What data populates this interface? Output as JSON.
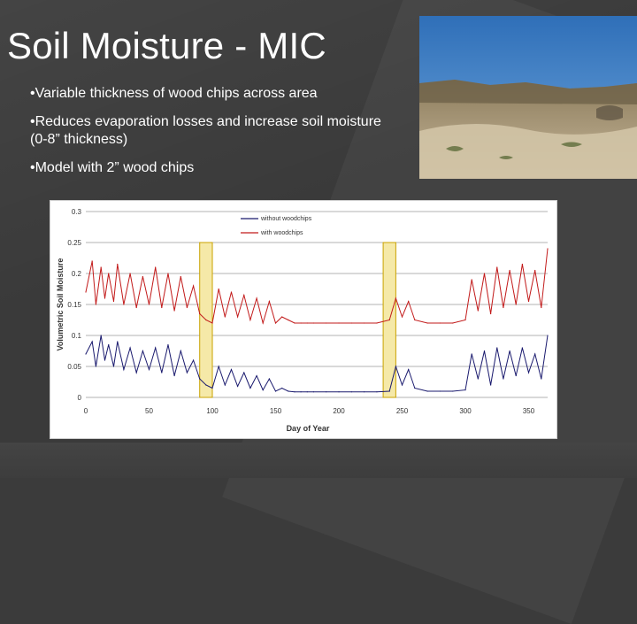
{
  "slide": {
    "title": "Soil Moisture - MIC",
    "bullets": [
      "•Variable thickness of wood chips across area",
      "•Reduces evaporation losses and increase soil moisture (0-8” thickness)",
      "•Model with 2” wood chips"
    ],
    "photo": {
      "sky_color": "#3d7fc4",
      "ground_color": "#8a7a5a"
    }
  },
  "chart_data": {
    "type": "line",
    "xlabel": "Day of Year",
    "ylabel": "Volumetric Soil Moisture",
    "xlim": [
      0,
      365
    ],
    "ylim": [
      0,
      0.3
    ],
    "x_ticks": [
      "0",
      "50",
      "100",
      "150",
      "200",
      "250",
      "300",
      "350"
    ],
    "y_ticks": [
      "0",
      "0.05",
      "0.1",
      "0.15",
      "0.2",
      "0.25",
      "0.3"
    ],
    "grid": true,
    "legend_position": "top",
    "highlight_regions": [
      [
        90,
        100
      ],
      [
        235,
        245
      ]
    ],
    "highlight_color": "#f5e9a8",
    "highlight_border": "#c9a200",
    "series": [
      {
        "name": "without woodchips",
        "color": "#1a1a6e",
        "x": [
          0,
          5,
          8,
          12,
          15,
          18,
          22,
          25,
          30,
          35,
          40,
          45,
          50,
          55,
          60,
          65,
          70,
          75,
          80,
          85,
          90,
          95,
          100,
          105,
          110,
          115,
          120,
          125,
          130,
          135,
          140,
          145,
          150,
          155,
          160,
          165,
          170,
          175,
          180,
          190,
          200,
          210,
          220,
          230,
          240,
          245,
          250,
          255,
          260,
          270,
          280,
          290,
          300,
          305,
          310,
          315,
          320,
          325,
          330,
          335,
          340,
          345,
          350,
          355,
          360,
          365
        ],
        "y": [
          0.07,
          0.09,
          0.05,
          0.1,
          0.06,
          0.085,
          0.05,
          0.09,
          0.045,
          0.08,
          0.04,
          0.075,
          0.045,
          0.08,
          0.04,
          0.085,
          0.035,
          0.075,
          0.04,
          0.06,
          0.03,
          0.02,
          0.015,
          0.05,
          0.02,
          0.045,
          0.018,
          0.04,
          0.015,
          0.035,
          0.012,
          0.03,
          0.01,
          0.015,
          0.01,
          0.009,
          0.009,
          0.009,
          0.009,
          0.009,
          0.009,
          0.009,
          0.009,
          0.009,
          0.01,
          0.05,
          0.02,
          0.045,
          0.015,
          0.01,
          0.01,
          0.01,
          0.012,
          0.07,
          0.03,
          0.075,
          0.02,
          0.08,
          0.03,
          0.075,
          0.035,
          0.08,
          0.04,
          0.07,
          0.03,
          0.1
        ]
      },
      {
        "name": "with woodchips",
        "color": "#c21a1a",
        "x": [
          0,
          5,
          8,
          12,
          15,
          18,
          22,
          25,
          30,
          35,
          40,
          45,
          50,
          55,
          60,
          65,
          70,
          75,
          80,
          85,
          90,
          95,
          100,
          105,
          110,
          115,
          120,
          125,
          130,
          135,
          140,
          145,
          150,
          155,
          160,
          165,
          170,
          175,
          180,
          190,
          200,
          210,
          220,
          230,
          240,
          245,
          250,
          255,
          260,
          270,
          280,
          290,
          300,
          305,
          310,
          315,
          320,
          325,
          330,
          335,
          340,
          345,
          350,
          355,
          360,
          365
        ],
        "y": [
          0.17,
          0.22,
          0.15,
          0.21,
          0.16,
          0.2,
          0.155,
          0.215,
          0.15,
          0.2,
          0.145,
          0.195,
          0.15,
          0.21,
          0.145,
          0.2,
          0.14,
          0.195,
          0.145,
          0.18,
          0.135,
          0.125,
          0.12,
          0.175,
          0.13,
          0.17,
          0.13,
          0.165,
          0.125,
          0.16,
          0.12,
          0.155,
          0.12,
          0.13,
          0.125,
          0.12,
          0.12,
          0.12,
          0.12,
          0.12,
          0.12,
          0.12,
          0.12,
          0.12,
          0.125,
          0.16,
          0.13,
          0.155,
          0.125,
          0.12,
          0.12,
          0.12,
          0.125,
          0.19,
          0.14,
          0.2,
          0.135,
          0.21,
          0.145,
          0.205,
          0.15,
          0.215,
          0.155,
          0.205,
          0.145,
          0.24
        ]
      }
    ]
  }
}
